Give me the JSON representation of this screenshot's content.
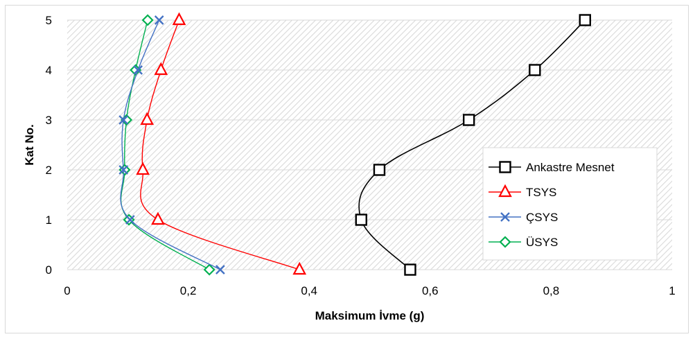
{
  "chart_data": {
    "type": "line",
    "xlabel": "Maksimum İvme (g)",
    "ylabel": "Kat No.",
    "xlim": [
      0,
      1
    ],
    "ylim": [
      0,
      5
    ],
    "x_ticks": [
      "0",
      "0,2",
      "0,4",
      "0,6",
      "0,8",
      "1"
    ],
    "y_ticks": [
      "0",
      "1",
      "2",
      "3",
      "4",
      "5"
    ],
    "grid": "horizontal",
    "plot_background": "diagonal-hatch",
    "legend_position": "right",
    "series": [
      {
        "name": "Ankastre Mesnet",
        "color": "#000000",
        "marker": "square",
        "points": [
          {
            "x": 0.567,
            "y": 0
          },
          {
            "x": 0.486,
            "y": 1
          },
          {
            "x": 0.516,
            "y": 2
          },
          {
            "x": 0.664,
            "y": 3
          },
          {
            "x": 0.773,
            "y": 4
          },
          {
            "x": 0.856,
            "y": 5
          }
        ]
      },
      {
        "name": "TSYS",
        "color": "#ff0000",
        "marker": "triangle",
        "points": [
          {
            "x": 0.384,
            "y": 0
          },
          {
            "x": 0.15,
            "y": 1
          },
          {
            "x": 0.125,
            "y": 2
          },
          {
            "x": 0.132,
            "y": 3
          },
          {
            "x": 0.155,
            "y": 4
          },
          {
            "x": 0.185,
            "y": 5
          }
        ]
      },
      {
        "name": "ÇSYS",
        "color": "#4472c4",
        "marker": "x",
        "points": [
          {
            "x": 0.253,
            "y": 0
          },
          {
            "x": 0.104,
            "y": 1
          },
          {
            "x": 0.093,
            "y": 2
          },
          {
            "x": 0.093,
            "y": 3
          },
          {
            "x": 0.117,
            "y": 4
          },
          {
            "x": 0.152,
            "y": 5
          }
        ]
      },
      {
        "name": "ÜSYS",
        "color": "#00b050",
        "marker": "diamond",
        "points": [
          {
            "x": 0.235,
            "y": 0
          },
          {
            "x": 0.102,
            "y": 1
          },
          {
            "x": 0.095,
            "y": 2
          },
          {
            "x": 0.098,
            "y": 3
          },
          {
            "x": 0.113,
            "y": 4
          },
          {
            "x": 0.133,
            "y": 5
          }
        ]
      }
    ]
  }
}
